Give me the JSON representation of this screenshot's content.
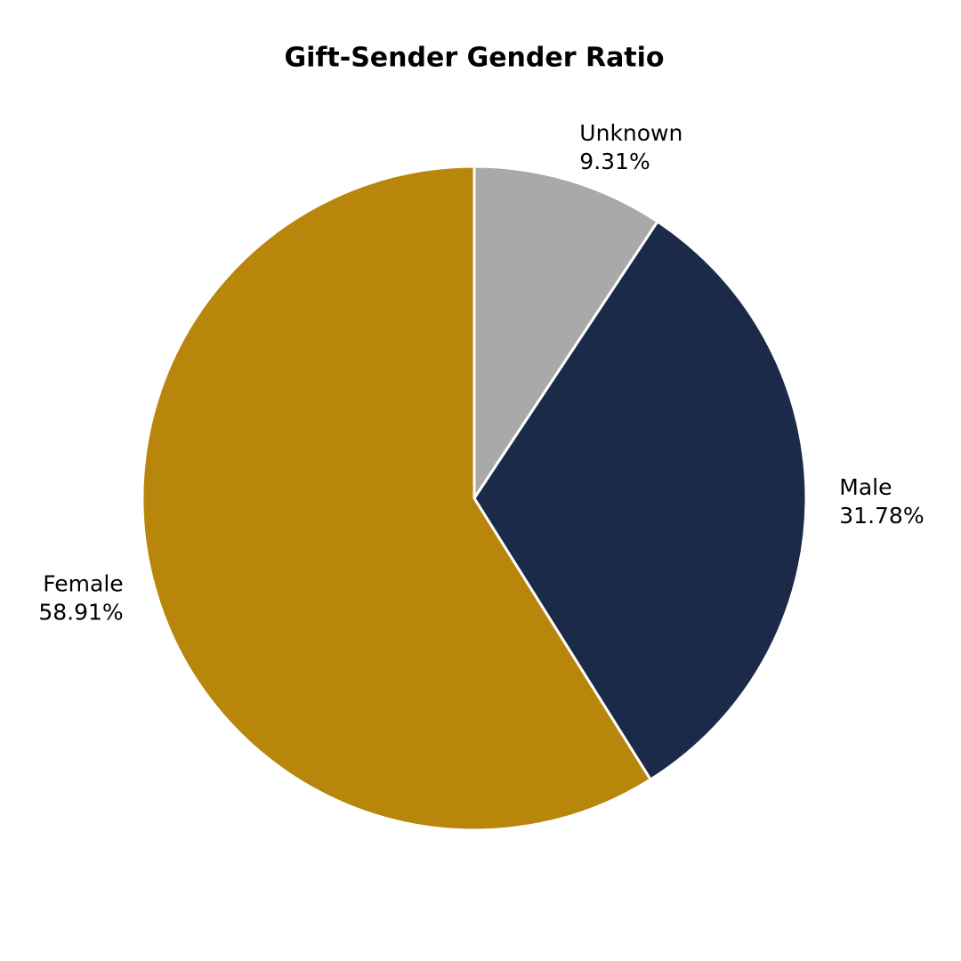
{
  "chart_data": {
    "type": "pie",
    "title": "Gift-Sender Gender Ratio",
    "categories": [
      "Unknown",
      "Male",
      "Female"
    ],
    "values": [
      9.31,
      31.78,
      58.91
    ],
    "value_labels": [
      "9.31%",
      "31.78%",
      "58.91%"
    ],
    "colors": [
      "#a9a9a9",
      "#1c2a4a",
      "#b8860b"
    ]
  }
}
